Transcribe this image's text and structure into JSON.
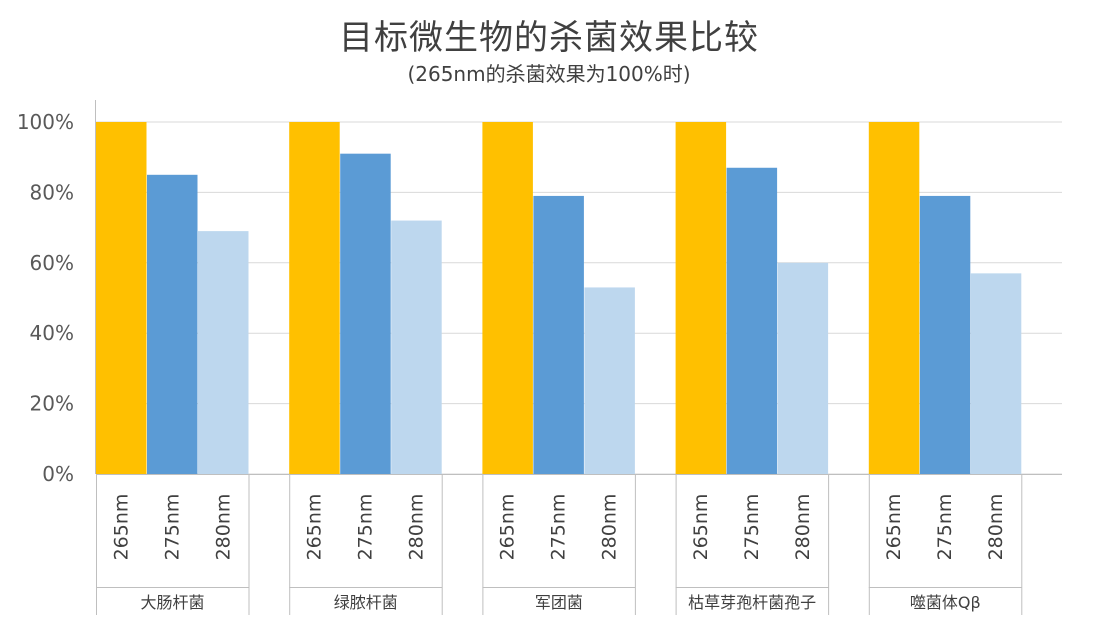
{
  "chart_data": {
    "type": "bar",
    "title": "目标微生物的杀菌效果比较",
    "subtitle": "(265nm的杀菌效果为100%时)",
    "categories": [
      "大肠杆菌",
      "绿脓杆菌",
      "军团菌",
      "枯草芽孢杆菌孢子",
      "噬菌体Qβ"
    ],
    "subcategories": [
      "265nm",
      "275nm",
      "280nm"
    ],
    "subcategory_colors": [
      "#FFC000",
      "#5B9BD5",
      "#BDD7EE"
    ],
    "values": [
      [
        100,
        85,
        69
      ],
      [
        100,
        91,
        72
      ],
      [
        100,
        79,
        53
      ],
      [
        100,
        87,
        60
      ],
      [
        100,
        79,
        57
      ]
    ],
    "y_ticks": [
      "0%",
      "20%",
      "40%",
      "60%",
      "80%",
      "100%"
    ],
    "ylim": [
      0,
      100
    ],
    "grid": true
  }
}
